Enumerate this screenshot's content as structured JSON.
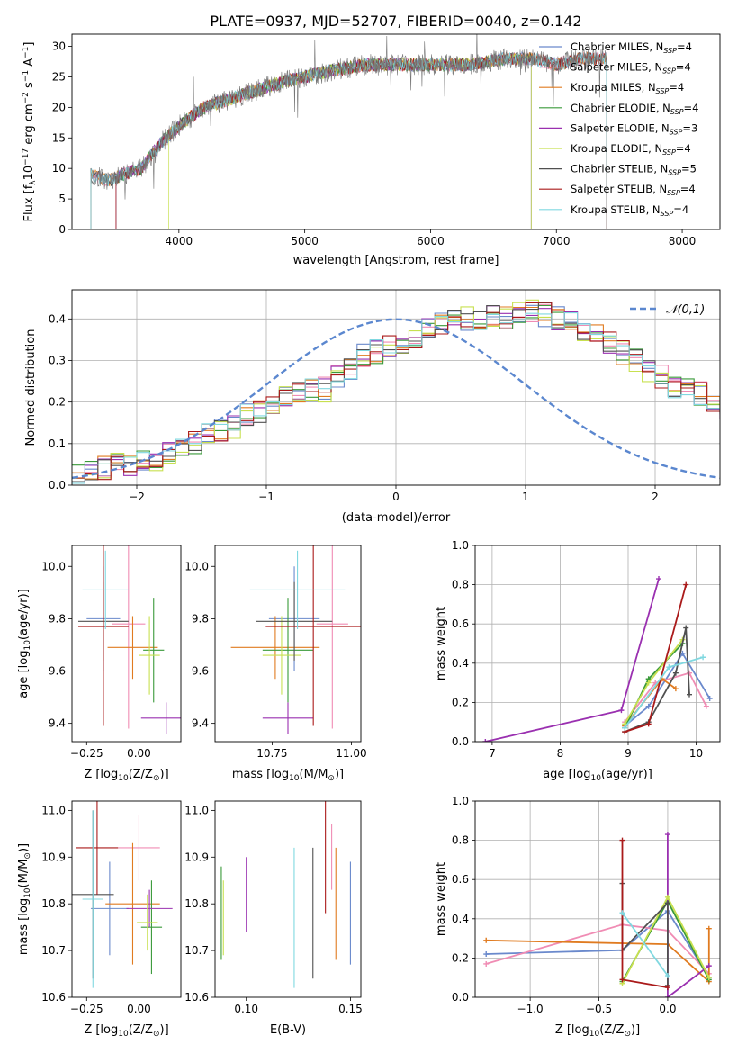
{
  "figure_title": "PLATE=0937, MJD=52707, FIBERID=0040, z=0.142",
  "colors": {
    "models": [
      "#6a89cc",
      "#f08cb4",
      "#e07b20",
      "#3a9a3a",
      "#9a30b0",
      "#c8e050",
      "#505050",
      "#aa1a1a",
      "#80d8e0"
    ],
    "gaussian": "#5b87cf"
  },
  "model_names_plain": [
    "Chabrier MILES",
    "Salpeter MILES",
    "Kroupa MILES",
    "Chabrier ELODIE",
    "Salpeter ELODIE",
    "Kroupa ELODIE",
    "Chabrier STELIB",
    "Salpeter STELIB",
    "Kroupa STELIB"
  ],
  "chart_data": [
    {
      "id": "spectrum",
      "type": "line",
      "title": "PLATE=0937, MJD=52707, FIBERID=0040, z=0.142",
      "xlabel": "wavelength [Angstrom, rest frame]",
      "ylabel_parts": [
        "Flux [f",
        "λ",
        "10",
        "−17",
        " erg cm",
        "−2",
        " s",
        "−1",
        " A",
        "−1",
        "]"
      ],
      "xlim": [
        3150,
        8300
      ],
      "ylim": [
        0,
        32
      ],
      "xticks": [
        4000,
        5000,
        6000,
        7000,
        8000
      ],
      "yticks": [
        0,
        5,
        10,
        15,
        20,
        25,
        30
      ],
      "grid": false,
      "legend_position": "top-right",
      "legend": [
        {
          "name": "Chabrier MILES",
          "nssp": "4"
        },
        {
          "name": "Salpeter MILES",
          "nssp": "4"
        },
        {
          "name": "Kroupa MILES",
          "nssp": "4"
        },
        {
          "name": "Chabrier ELODIE",
          "nssp": "4"
        },
        {
          "name": "Salpeter ELODIE",
          "nssp": "3"
        },
        {
          "name": "Kroupa ELODIE",
          "nssp": "4"
        },
        {
          "name": "Chabrier STELIB",
          "nssp": "5"
        },
        {
          "name": "Salpeter STELIB",
          "nssp": "4"
        },
        {
          "name": "Kroupa STELIB",
          "nssp": "4"
        }
      ],
      "nssp_prefix": "N",
      "nssp_sub": "SSP",
      "data_envelope": {
        "x": [
          3300,
          3450,
          3550,
          3700,
          3850,
          4000,
          4200,
          4500,
          4800,
          5000,
          5200,
          5500,
          5800,
          6000,
          6300,
          6600,
          6800,
          7000,
          7200,
          7400
        ],
        "y": [
          9,
          8,
          9,
          10,
          14,
          17,
          20,
          22,
          24,
          25,
          26,
          27,
          27,
          27,
          27,
          28,
          28,
          27,
          28,
          28
        ]
      },
      "model_edges": {
        "x_start": [
          3300,
          3300,
          3300,
          3500,
          3500,
          3920,
          3300,
          3500,
          3300
        ],
        "x_end": [
          7400,
          7400,
          7400,
          6800,
          6800,
          6800,
          7400,
          7400,
          7400
        ]
      }
    },
    {
      "id": "residuals",
      "type": "histogram",
      "xlabel": "(data-model)/error",
      "ylabel": "Normed distribution",
      "xlim": [
        -2.5,
        2.5
      ],
      "ylim": [
        0,
        0.47
      ],
      "xticks": [
        -2,
        -1,
        0,
        1,
        2
      ],
      "yticks": [
        0.0,
        0.1,
        0.2,
        0.3,
        0.4
      ],
      "grid": true,
      "legend_position": "top-right",
      "legend": [
        {
          "name": "𝒩(0,1)",
          "style": "dashed"
        }
      ],
      "bin_width": 0.1,
      "bins_from": -2.5,
      "bin_values": [
        0.02,
        0.03,
        0.04,
        0.05,
        0.05,
        0.06,
        0.06,
        0.08,
        0.09,
        0.1,
        0.12,
        0.13,
        0.14,
        0.17,
        0.18,
        0.2,
        0.21,
        0.22,
        0.23,
        0.23,
        0.26,
        0.28,
        0.31,
        0.32,
        0.33,
        0.34,
        0.36,
        0.38,
        0.39,
        0.41,
        0.4,
        0.4,
        0.41,
        0.4,
        0.41,
        0.42,
        0.41,
        0.4,
        0.39,
        0.37,
        0.36,
        0.34,
        0.32,
        0.3,
        0.27,
        0.26,
        0.23,
        0.23,
        0.22,
        0.2,
        0.19,
        0.17,
        0.16,
        0.15,
        0.13,
        0.12,
        0.1,
        0.1,
        0.08,
        0.07,
        0.06,
        0.06,
        0.05,
        0.05,
        0.04,
        0.03,
        0.03,
        0.02,
        0.02,
        0.02
      ]
    },
    {
      "id": "age_vs_Z",
      "type": "errorbar",
      "xlabel_parts": [
        "Z [log",
        "10",
        "(Z/Z",
        "⊙",
        ")]"
      ],
      "ylabel_parts": [
        "age  [log",
        "10",
        "(age/yr)]"
      ],
      "xlim": [
        -0.32,
        0.2
      ],
      "ylim": [
        9.33,
        10.08
      ],
      "xticks": [
        -0.25,
        0.0
      ],
      "xticklabels": [
        "−0.25",
        "0.00"
      ],
      "yticks": [
        9.4,
        9.6,
        9.8,
        10.0
      ],
      "points": [
        {
          "x": -0.17,
          "xe": 0.08,
          "y": 9.8,
          "ye": 0.2
        },
        {
          "x": -0.05,
          "xe": 0.08,
          "y": 9.78,
          "ye": 0.4
        },
        {
          "x": -0.03,
          "xe": 0.12,
          "y": 9.69,
          "ye": 0.12
        },
        {
          "x": 0.07,
          "xe": 0.05,
          "y": 9.68,
          "ye": 0.2
        },
        {
          "x": 0.13,
          "xe": 0.12,
          "y": 9.42,
          "ye": 0.06
        },
        {
          "x": 0.05,
          "xe": 0.05,
          "y": 9.66,
          "ye": 0.15
        },
        {
          "x": -0.17,
          "xe": 0.12,
          "y": 9.79,
          "ye": 0.15
        },
        {
          "x": -0.17,
          "xe": 0.12,
          "y": 9.77,
          "ye": 0.38
        },
        {
          "x": -0.16,
          "xe": 0.11,
          "y": 9.91,
          "ye": 0.15
        }
      ]
    },
    {
      "id": "age_vs_mass",
      "type": "errorbar",
      "xlabel_parts": [
        "mass [log",
        "10",
        "(M/M",
        "⊙",
        ")]"
      ],
      "xlim": [
        10.57,
        11.03
      ],
      "ylim": [
        9.33,
        10.08
      ],
      "xticks": [
        10.75,
        11.0
      ],
      "xticklabels": [
        "10.75",
        "11.00"
      ],
      "yticks": [
        9.4,
        9.6,
        9.8,
        10.0
      ],
      "points": [
        {
          "x": 10.82,
          "xe": 0.08,
          "y": 9.8,
          "ye": 0.2
        },
        {
          "x": 10.94,
          "xe": 0.05,
          "y": 9.78,
          "ye": 0.4
        },
        {
          "x": 10.76,
          "xe": 0.14,
          "y": 9.69,
          "ye": 0.12
        },
        {
          "x": 10.8,
          "xe": 0.08,
          "y": 9.68,
          "ye": 0.2
        },
        {
          "x": 10.8,
          "xe": 0.08,
          "y": 9.42,
          "ye": 0.06
        },
        {
          "x": 10.78,
          "xe": 0.06,
          "y": 9.66,
          "ye": 0.15
        },
        {
          "x": 10.82,
          "xe": 0.12,
          "y": 9.79,
          "ye": 0.15
        },
        {
          "x": 10.88,
          "xe": 0.15,
          "y": 9.77,
          "ye": 0.38
        },
        {
          "x": 10.83,
          "xe": 0.15,
          "y": 9.91,
          "ye": 0.15
        }
      ]
    },
    {
      "id": "weight_vs_age",
      "type": "line",
      "xlabel_parts": [
        "age  [log",
        "10",
        "(age/yr)]"
      ],
      "ylabel": "mass weight",
      "xlim": [
        6.75,
        10.35
      ],
      "ylim": [
        0,
        1
      ],
      "xticks": [
        7,
        8,
        9,
        10
      ],
      "yticks": [
        0.0,
        0.2,
        0.4,
        0.6,
        0.8,
        1.0
      ],
      "grid": true,
      "series": [
        {
          "x": [
            8.95,
            9.3,
            9.8,
            10.2
          ],
          "y": [
            0.08,
            0.18,
            0.45,
            0.22
          ]
        },
        {
          "x": [
            8.95,
            9.4,
            9.9,
            10.15
          ],
          "y": [
            0.1,
            0.3,
            0.35,
            0.18
          ]
        },
        {
          "x": [
            8.95,
            9.5,
            9.7
          ],
          "y": [
            0.08,
            0.32,
            0.27
          ]
        },
        {
          "x": [
            8.95,
            9.3,
            9.8
          ],
          "y": [
            0.07,
            0.32,
            0.5
          ]
        },
        {
          "x": [
            6.9,
            8.9,
            9.45
          ],
          "y": [
            0.0,
            0.16,
            0.83
          ]
        },
        {
          "x": [
            8.95,
            9.3,
            9.8
          ],
          "y": [
            0.09,
            0.3,
            0.52
          ]
        },
        {
          "x": [
            8.95,
            9.3,
            9.7,
            9.85,
            9.9
          ],
          "y": [
            0.05,
            0.1,
            0.35,
            0.58,
            0.24
          ]
        },
        {
          "x": [
            8.95,
            9.3,
            9.85
          ],
          "y": [
            0.05,
            0.09,
            0.8
          ]
        },
        {
          "x": [
            8.95,
            9.6,
            10.1
          ],
          "y": [
            0.07,
            0.38,
            0.43
          ]
        }
      ]
    },
    {
      "id": "mass_vs_Z",
      "type": "errorbar",
      "xlabel_parts": [
        "Z [log",
        "10",
        "(Z/Z",
        "⊙",
        ")]"
      ],
      "ylabel_parts": [
        "mass [log",
        "10",
        "(M/M",
        "⊙",
        ")]"
      ],
      "xlim": [
        -0.32,
        0.2
      ],
      "ylim": [
        10.6,
        11.02
      ],
      "xticks": [
        -0.25,
        0.0
      ],
      "xticklabels": [
        "−0.25",
        "0.00"
      ],
      "yticks": [
        10.6,
        10.7,
        10.8,
        10.9,
        11.0
      ],
      "points": [
        {
          "x": -0.14,
          "xe": 0.09,
          "y": 10.79,
          "ye": 0.1
        },
        {
          "x": 0.0,
          "xe": 0.1,
          "y": 10.92,
          "ye": 0.07
        },
        {
          "x": -0.03,
          "xe": 0.13,
          "y": 10.8,
          "ye": 0.13
        },
        {
          "x": 0.06,
          "xe": 0.05,
          "y": 10.75,
          "ye": 0.1
        },
        {
          "x": 0.05,
          "xe": 0.11,
          "y": 10.79,
          "ye": 0.04
        },
        {
          "x": 0.04,
          "xe": 0.05,
          "y": 10.76,
          "ye": 0.06
        },
        {
          "x": -0.22,
          "xe": 0.1,
          "y": 10.82,
          "ye": 0.18
        },
        {
          "x": -0.2,
          "xe": 0.1,
          "y": 10.92,
          "ye": 0.1
        },
        {
          "x": -0.22,
          "xe": 0.05,
          "y": 10.81,
          "ye": 0.19
        }
      ]
    },
    {
      "id": "mass_vs_EBV",
      "type": "errorbar",
      "xlabel": "E(B-V)",
      "xlim": [
        0.085,
        0.155
      ],
      "ylim": [
        10.6,
        11.02
      ],
      "xticks": [
        0.1,
        0.15
      ],
      "xticklabels": [
        "0.10",
        "0.15"
      ],
      "yticks": [
        10.6,
        10.7,
        10.8,
        10.9,
        11.0
      ],
      "points": [
        {
          "x": 0.15,
          "y": 10.78,
          "ye": 0.11
        },
        {
          "x": 0.141,
          "y": 10.9,
          "ye": 0.07
        },
        {
          "x": 0.143,
          "y": 10.8,
          "ye": 0.12
        },
        {
          "x": 0.088,
          "y": 10.78,
          "ye": 0.1
        },
        {
          "x": 0.1,
          "y": 10.82,
          "ye": 0.08
        },
        {
          "x": 0.089,
          "y": 10.77,
          "ye": 0.08
        },
        {
          "x": 0.132,
          "y": 10.78,
          "ye": 0.14
        },
        {
          "x": 0.138,
          "y": 10.9,
          "ye": 0.12
        },
        {
          "x": 0.123,
          "y": 10.77,
          "ye": 0.15
        }
      ]
    },
    {
      "id": "weight_vs_Z",
      "type": "line",
      "xlabel_parts": [
        "Z [log",
        "10",
        "(Z/Z",
        "⊙",
        ")]"
      ],
      "ylabel": "mass weight",
      "xlim": [
        -1.4,
        0.38
      ],
      "ylim": [
        0,
        1
      ],
      "xticks": [
        -1.0,
        -0.5,
        0.0
      ],
      "xticklabels": [
        "−1.0",
        "−0.5",
        "0.0"
      ],
      "yticks": [
        0.0,
        0.2,
        0.4,
        0.6,
        0.8,
        1.0
      ],
      "grid": true,
      "series": [
        {
          "x": [
            -1.32,
            -0.33,
            0.0,
            0.3
          ],
          "y": [
            0.22,
            0.24,
            0.44,
            0.1
          ]
        },
        {
          "x": [
            -1.32,
            -0.33,
            0.0,
            0.3
          ],
          "y": [
            0.17,
            0.37,
            0.34,
            0.12
          ]
        },
        {
          "x": [
            -1.32,
            0.0,
            0.3,
            0.3
          ],
          "y": [
            0.29,
            0.27,
            0.08,
            0.35
          ]
        },
        {
          "x": [
            -0.33,
            0.0,
            0.3
          ],
          "y": [
            0.08,
            0.49,
            0.09
          ]
        },
        {
          "x": [
            0.0,
            0.0,
            0.3
          ],
          "y": [
            0.83,
            0.0,
            0.16
          ]
        },
        {
          "x": [
            -0.33,
            0.0,
            0.3
          ],
          "y": [
            0.07,
            0.51,
            0.1
          ]
        },
        {
          "x": [
            -0.33,
            -0.33,
            0.0,
            0.0
          ],
          "y": [
            0.58,
            0.24,
            0.48,
            0.06
          ]
        },
        {
          "x": [
            -0.33,
            -0.33,
            0.0
          ],
          "y": [
            0.8,
            0.09,
            0.05
          ]
        },
        {
          "x": [
            -0.33,
            0.0
          ],
          "y": [
            0.43,
            0.11
          ]
        }
      ]
    }
  ]
}
